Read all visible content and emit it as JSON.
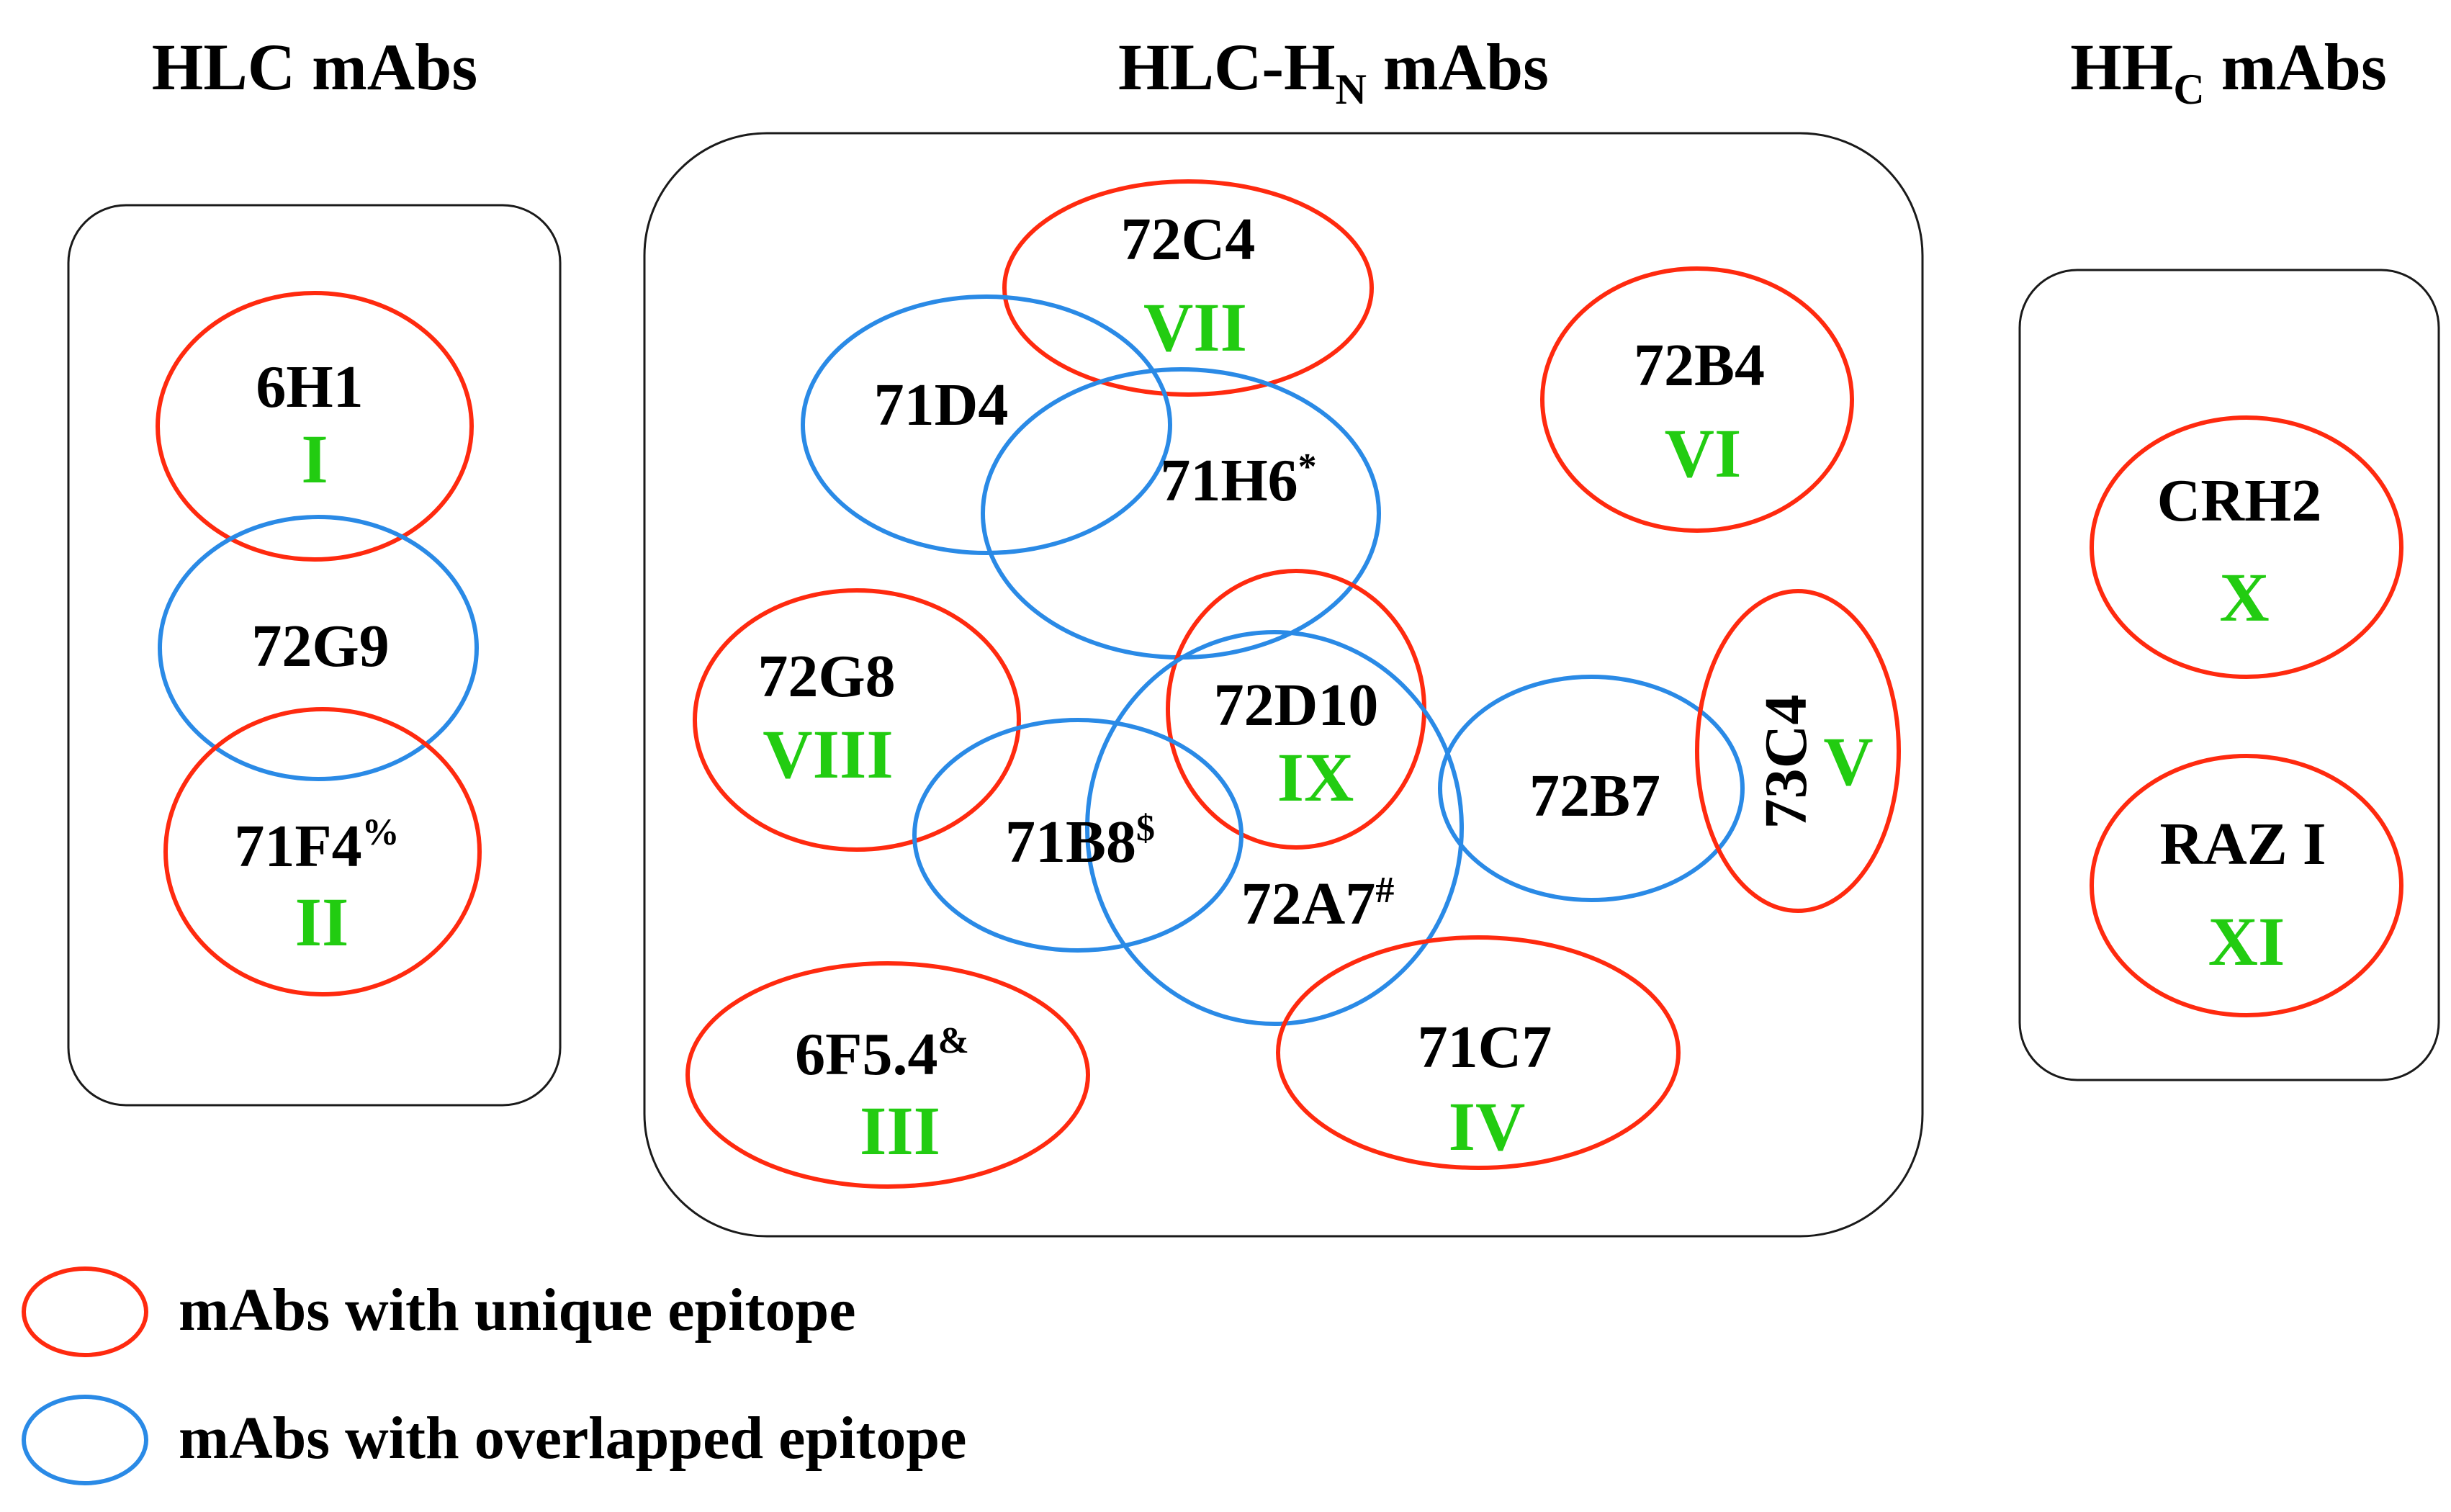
{
  "colors": {
    "unique": "#ff2a0f",
    "overlapped": "#2a8ae6",
    "epitope_label": "#22cc11",
    "text": "#000000"
  },
  "panels": {
    "hlc": {
      "title": "HLC mAbs"
    },
    "hlc_hn": {
      "title_main": "HLC-H",
      "title_sub": "N",
      "title_rest": " mAbs"
    },
    "hhc": {
      "title_main": "HH",
      "title_sub": "C",
      "title_rest": " mAbs"
    }
  },
  "antibodies": {
    "6H1": {
      "name": "6H1",
      "mark": "",
      "epitope": "I",
      "type": "unique"
    },
    "72G9": {
      "name": "72G9",
      "mark": "",
      "epitope": "",
      "type": "overlapped"
    },
    "71F4": {
      "name": "71F4",
      "mark": "%",
      "epitope": "II",
      "type": "unique"
    },
    "72C4": {
      "name": "72C4",
      "mark": "",
      "epitope": "VII",
      "type": "unique"
    },
    "71D4": {
      "name": "71D4",
      "mark": "",
      "epitope": "",
      "type": "overlapped"
    },
    "71H6": {
      "name": "71H6",
      "mark": "*",
      "epitope": "",
      "type": "overlapped"
    },
    "72B4": {
      "name": "72B4",
      "mark": "",
      "epitope": "VI",
      "type": "unique"
    },
    "72G8": {
      "name": "72G8",
      "mark": "",
      "epitope": "VIII",
      "type": "unique"
    },
    "72D10": {
      "name": "72D10",
      "mark": "",
      "epitope": "IX",
      "type": "unique"
    },
    "71B8": {
      "name": "71B8",
      "mark": "$",
      "epitope": "",
      "type": "overlapped"
    },
    "72A7": {
      "name": "72A7",
      "mark": "#",
      "epitope": "",
      "type": "overlapped"
    },
    "72B7": {
      "name": "72B7",
      "mark": "",
      "epitope": "",
      "type": "overlapped"
    },
    "73C4": {
      "name": "73C4",
      "mark": "",
      "epitope": "V",
      "type": "unique"
    },
    "6F54": {
      "name": "6F5.4",
      "mark": "&",
      "epitope": "III",
      "type": "unique"
    },
    "71C7": {
      "name": "71C7",
      "mark": "",
      "epitope": "IV",
      "type": "unique"
    },
    "CRH2": {
      "name": "CRH2",
      "mark": "",
      "epitope": "X",
      "type": "unique"
    },
    "RAZI": {
      "name": "RAZ I",
      "mark": "",
      "epitope": "XI",
      "type": "unique"
    }
  },
  "legend": {
    "unique": "mAbs with unique epitope",
    "overlapped": "mAbs with overlapped epitope"
  }
}
